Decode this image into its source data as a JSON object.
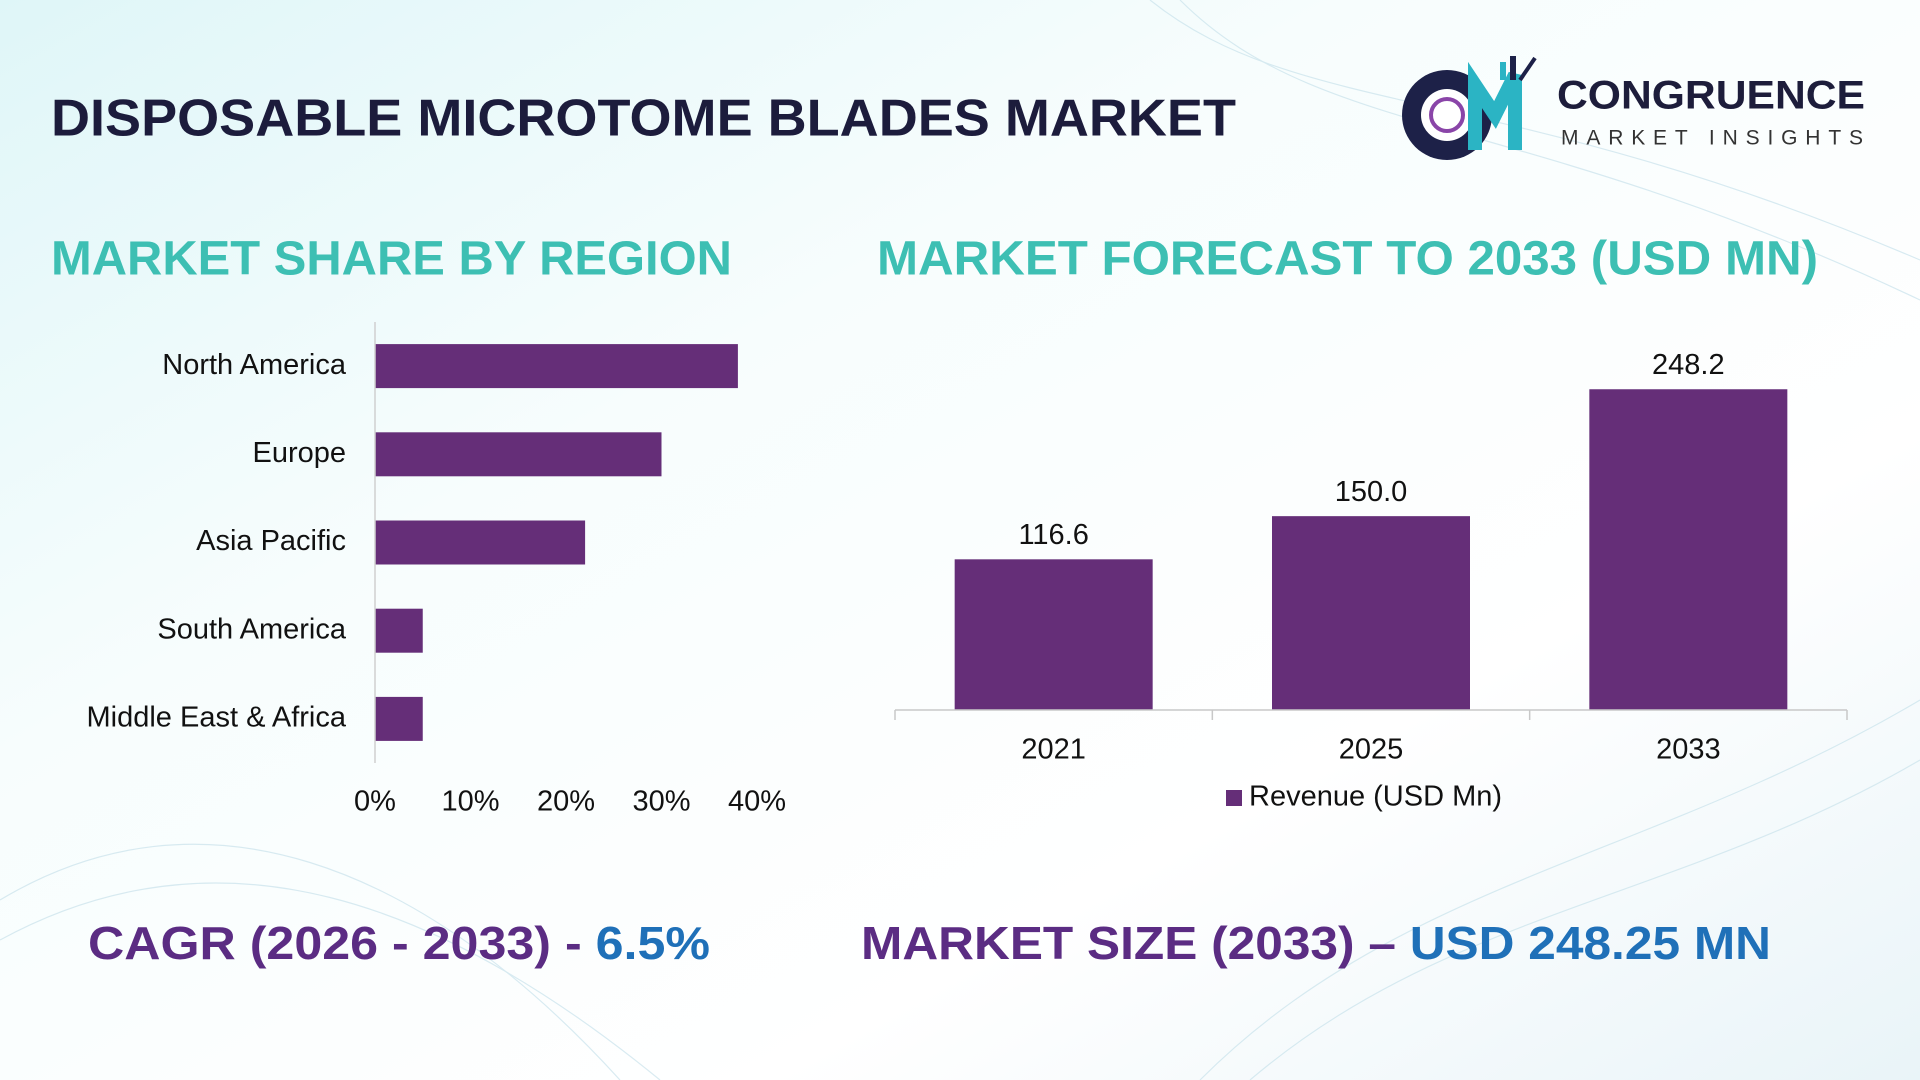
{
  "header": {
    "title": "DISPOSABLE MICROTOME BLADES MARKET"
  },
  "logo": {
    "name": "CONGRUENCE",
    "tagline": "MARKET INSIGHTS"
  },
  "chart_data": [
    {
      "type": "barh",
      "title": "MARKET SHARE BY REGION",
      "categories": [
        "North America",
        "Europe",
        "Asia Pacific",
        "South America",
        "Middle East & Africa"
      ],
      "values": [
        38,
        30,
        22,
        5,
        5
      ],
      "color": "#652e78",
      "xlim": [
        0,
        40
      ],
      "xticks": [
        {
          "value": 0,
          "label": "0%"
        },
        {
          "value": 10,
          "label": "10%"
        },
        {
          "value": 20,
          "label": "20%"
        },
        {
          "value": 30,
          "label": "30%"
        },
        {
          "value": 40,
          "label": "40%"
        }
      ],
      "grid": false
    },
    {
      "type": "bar",
      "title": "MARKET FORECAST TO 2033 (USD MN)",
      "categories": [
        "2021",
        "2025",
        "2033"
      ],
      "series": [
        {
          "name": "Revenue (USD Mn)",
          "color": "#652e78",
          "values": [
            116.6,
            150.0,
            248.2
          ],
          "value_labels": [
            "116.6",
            "150.0",
            "248.2"
          ]
        }
      ],
      "ylim": [
        0,
        260
      ],
      "grid": false,
      "legend": "bottom"
    }
  ],
  "footer": {
    "cagr_label": "CAGR (2026 - 2033) - ",
    "cagr_value": "6.5%",
    "size_label": "MARKET SIZE (2033) – ",
    "size_value": "USD 248.25 MN"
  }
}
